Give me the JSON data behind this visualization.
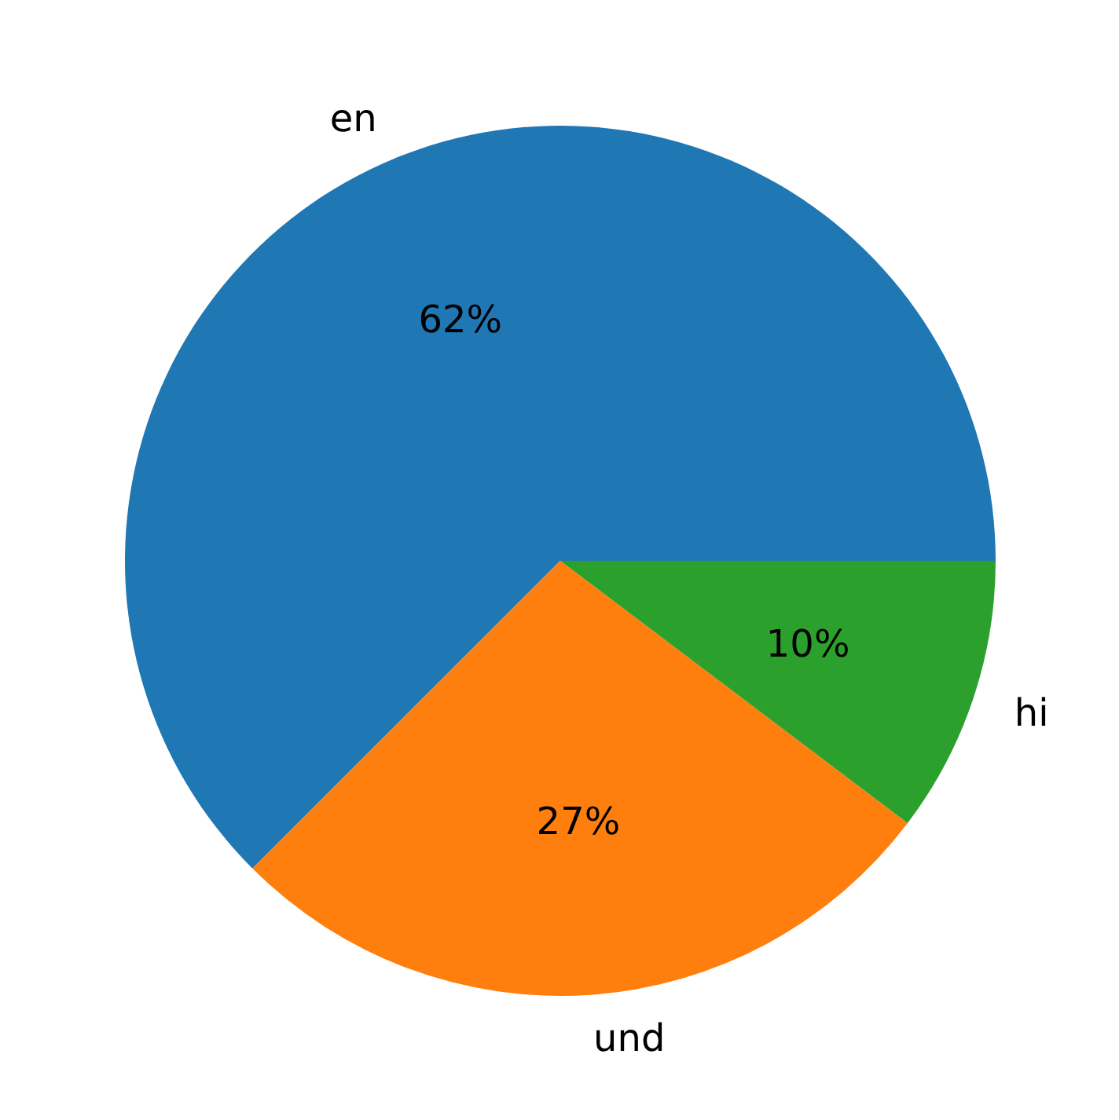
{
  "chart_data": {
    "type": "pie",
    "categories": [
      "en",
      "und",
      "hi"
    ],
    "values": [
      62.5,
      27.2,
      10.3
    ],
    "colors": [
      "#1f77b4",
      "#ff7f0e",
      "#2ca02c"
    ],
    "value_labels": [
      "62%",
      "27%",
      "10%"
    ]
  }
}
